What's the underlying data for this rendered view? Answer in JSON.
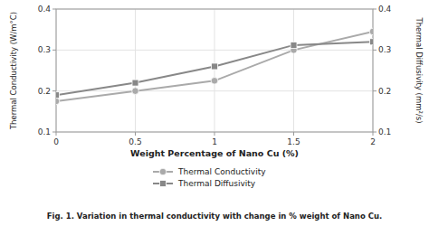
{
  "chart_data": {
    "type": "line",
    "x": [
      0,
      0.5,
      1,
      1.5,
      2
    ],
    "series": [
      {
        "name": "Thermal Conductivity",
        "color": "#aaaaaa",
        "marker": "circle",
        "axis": "y",
        "values": [
          0.175,
          0.2,
          0.225,
          0.3,
          0.345
        ]
      },
      {
        "name": "Thermal Diffusivity",
        "color": "#888888",
        "marker": "square",
        "axis": "y2",
        "values": [
          0.19,
          0.22,
          0.26,
          0.312,
          0.32
        ]
      }
    ],
    "xlabel": "Weight Percentage of Nano Cu (%)",
    "ylabel": "Thermal Conductivity (W/m°C)",
    "y2label": "Thermal Diffusivity (mm²/s)",
    "caption": "Fig. 1. Variation in thermal conductivity with change in % weight of Nano Cu.",
    "xlim": [
      0,
      2
    ],
    "xticks": [
      0,
      0.5,
      1,
      1.5,
      2
    ],
    "ylim": [
      0.1,
      0.4
    ],
    "yticks": [
      0.1,
      0.2,
      0.3,
      0.4
    ],
    "y2lim": [
      0.1,
      0.4
    ],
    "y2ticks": [
      0.1,
      0.2,
      0.3,
      0.4
    ],
    "grid": true,
    "legend": "bottom"
  }
}
